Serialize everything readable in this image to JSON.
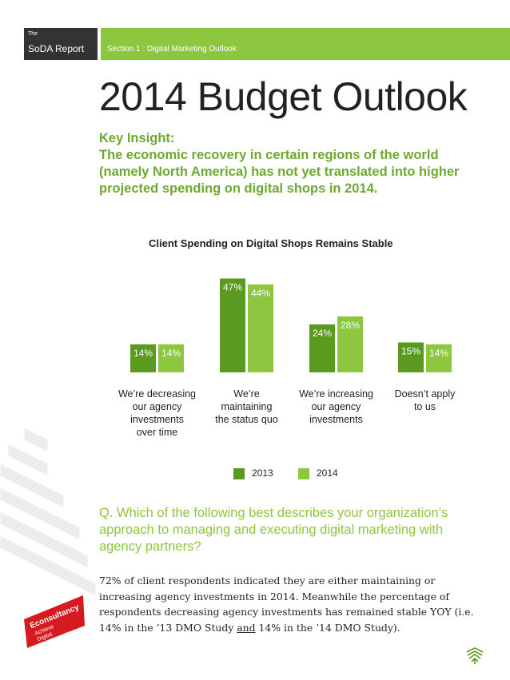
{
  "header": {
    "the": "The",
    "brand": "SoDA Report",
    "section": "Section 1 : Digital Marketing Outlook"
  },
  "page_title": "2014 Budget Outlook",
  "key_insight": {
    "heading": "Key Insight:",
    "text": "The economic recovery in certain regions of the world (namely North America) has not yet translated into higher projected spending on digital shops in 2014."
  },
  "chart_data": {
    "type": "bar",
    "title": "Client Spending on Digital Shops Remains Stable",
    "categories": [
      [
        "We’re decreasing",
        "our agency",
        "investments",
        "over time"
      ],
      [
        "We’re",
        "maintaining",
        "the status quo"
      ],
      [
        "We’re increasing",
        "our agency",
        "investments"
      ],
      [
        "Doesn’t apply",
        "to us"
      ]
    ],
    "series": [
      {
        "name": "2013",
        "color": "#5a9a1e",
        "values": [
          14,
          47,
          24,
          15
        ],
        "labels": [
          "14%",
          "47%",
          "24%",
          "15%"
        ]
      },
      {
        "name": "2014",
        "color": "#8dc63f",
        "values": [
          14,
          44,
          28,
          14
        ],
        "labels": [
          "14%",
          "44%",
          "28%",
          "14%"
        ]
      }
    ],
    "ylim": [
      0,
      50
    ]
  },
  "legend": {
    "item1": "2013",
    "item2": "2014"
  },
  "question": "Q. Which of the following best describes your organization’s approach to managing and executing digital marketing with agency partners?",
  "body": {
    "part1": "72% of client respondents indicated they are either maintaining or increasing agency investments in 2014. Meanwhile the percentage of respondents decreasing agency investments has remained stable YOY (i.e. 14% in the ’13 DMO Study ",
    "underlined": "and",
    "part2": " 14% in the ’14 DMO Study)."
  },
  "logo": {
    "name": "Econsultancy",
    "tagline": [
      "Achieve",
      "Digital",
      "Excellence™"
    ]
  },
  "colors": {
    "dark_green": "#5a9a1e",
    "light_green": "#8dc63f",
    "insight_green": "#6da930",
    "logo_red": "#d71920",
    "header_dark": "#333333"
  }
}
